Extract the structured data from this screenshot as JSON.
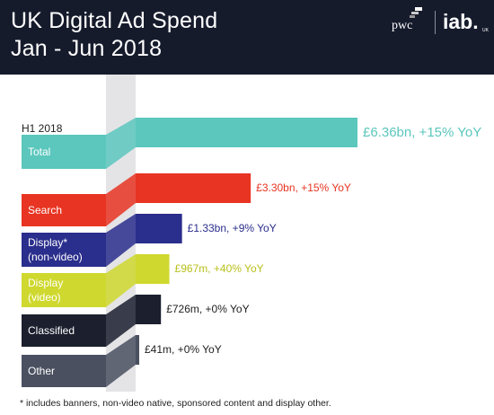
{
  "header": {
    "title_line1": "UK Digital Ad Spend",
    "title_line2": "Jan - Jun 2018",
    "logo_pwc": "pwc",
    "logo_iab": "iab.",
    "logo_iab_sub": "UK",
    "background": "#161b2c"
  },
  "chart_data": {
    "type": "bar",
    "title": "UK Digital Ad Spend Jan - Jun 2018",
    "period_label": "H1 2018",
    "unit": "£bn",
    "categories": [
      "Total",
      "Search",
      "Display* (non-video)",
      "Display (video)",
      "Classified",
      "Other"
    ],
    "values": [
      6.36,
      3.3,
      1.33,
      0.967,
      0.726,
      0.041
    ],
    "yoy_percent": [
      15,
      15,
      9,
      40,
      0,
      0
    ],
    "value_labels": [
      "£6.36bn, +15% YoY",
      "£3.30bn, +15% YoY",
      "£1.33bn, +9% YoY",
      "£967m, +40% YoY",
      "£726m, +0% YoY",
      "£41m, +0% YoY"
    ],
    "colors": [
      "#5bc7bd",
      "#e83422",
      "#2a2e8c",
      "#cfd82e",
      "#1b1f2e",
      "#4a5060"
    ],
    "label_colors": [
      "#5bc7bd",
      "#e83422",
      "#2a2e8c",
      "#b9c01d",
      "#1e1e1e",
      "#1e1e1e"
    ]
  },
  "footnote": "* includes banners, non-video native, sponsored content and display other."
}
